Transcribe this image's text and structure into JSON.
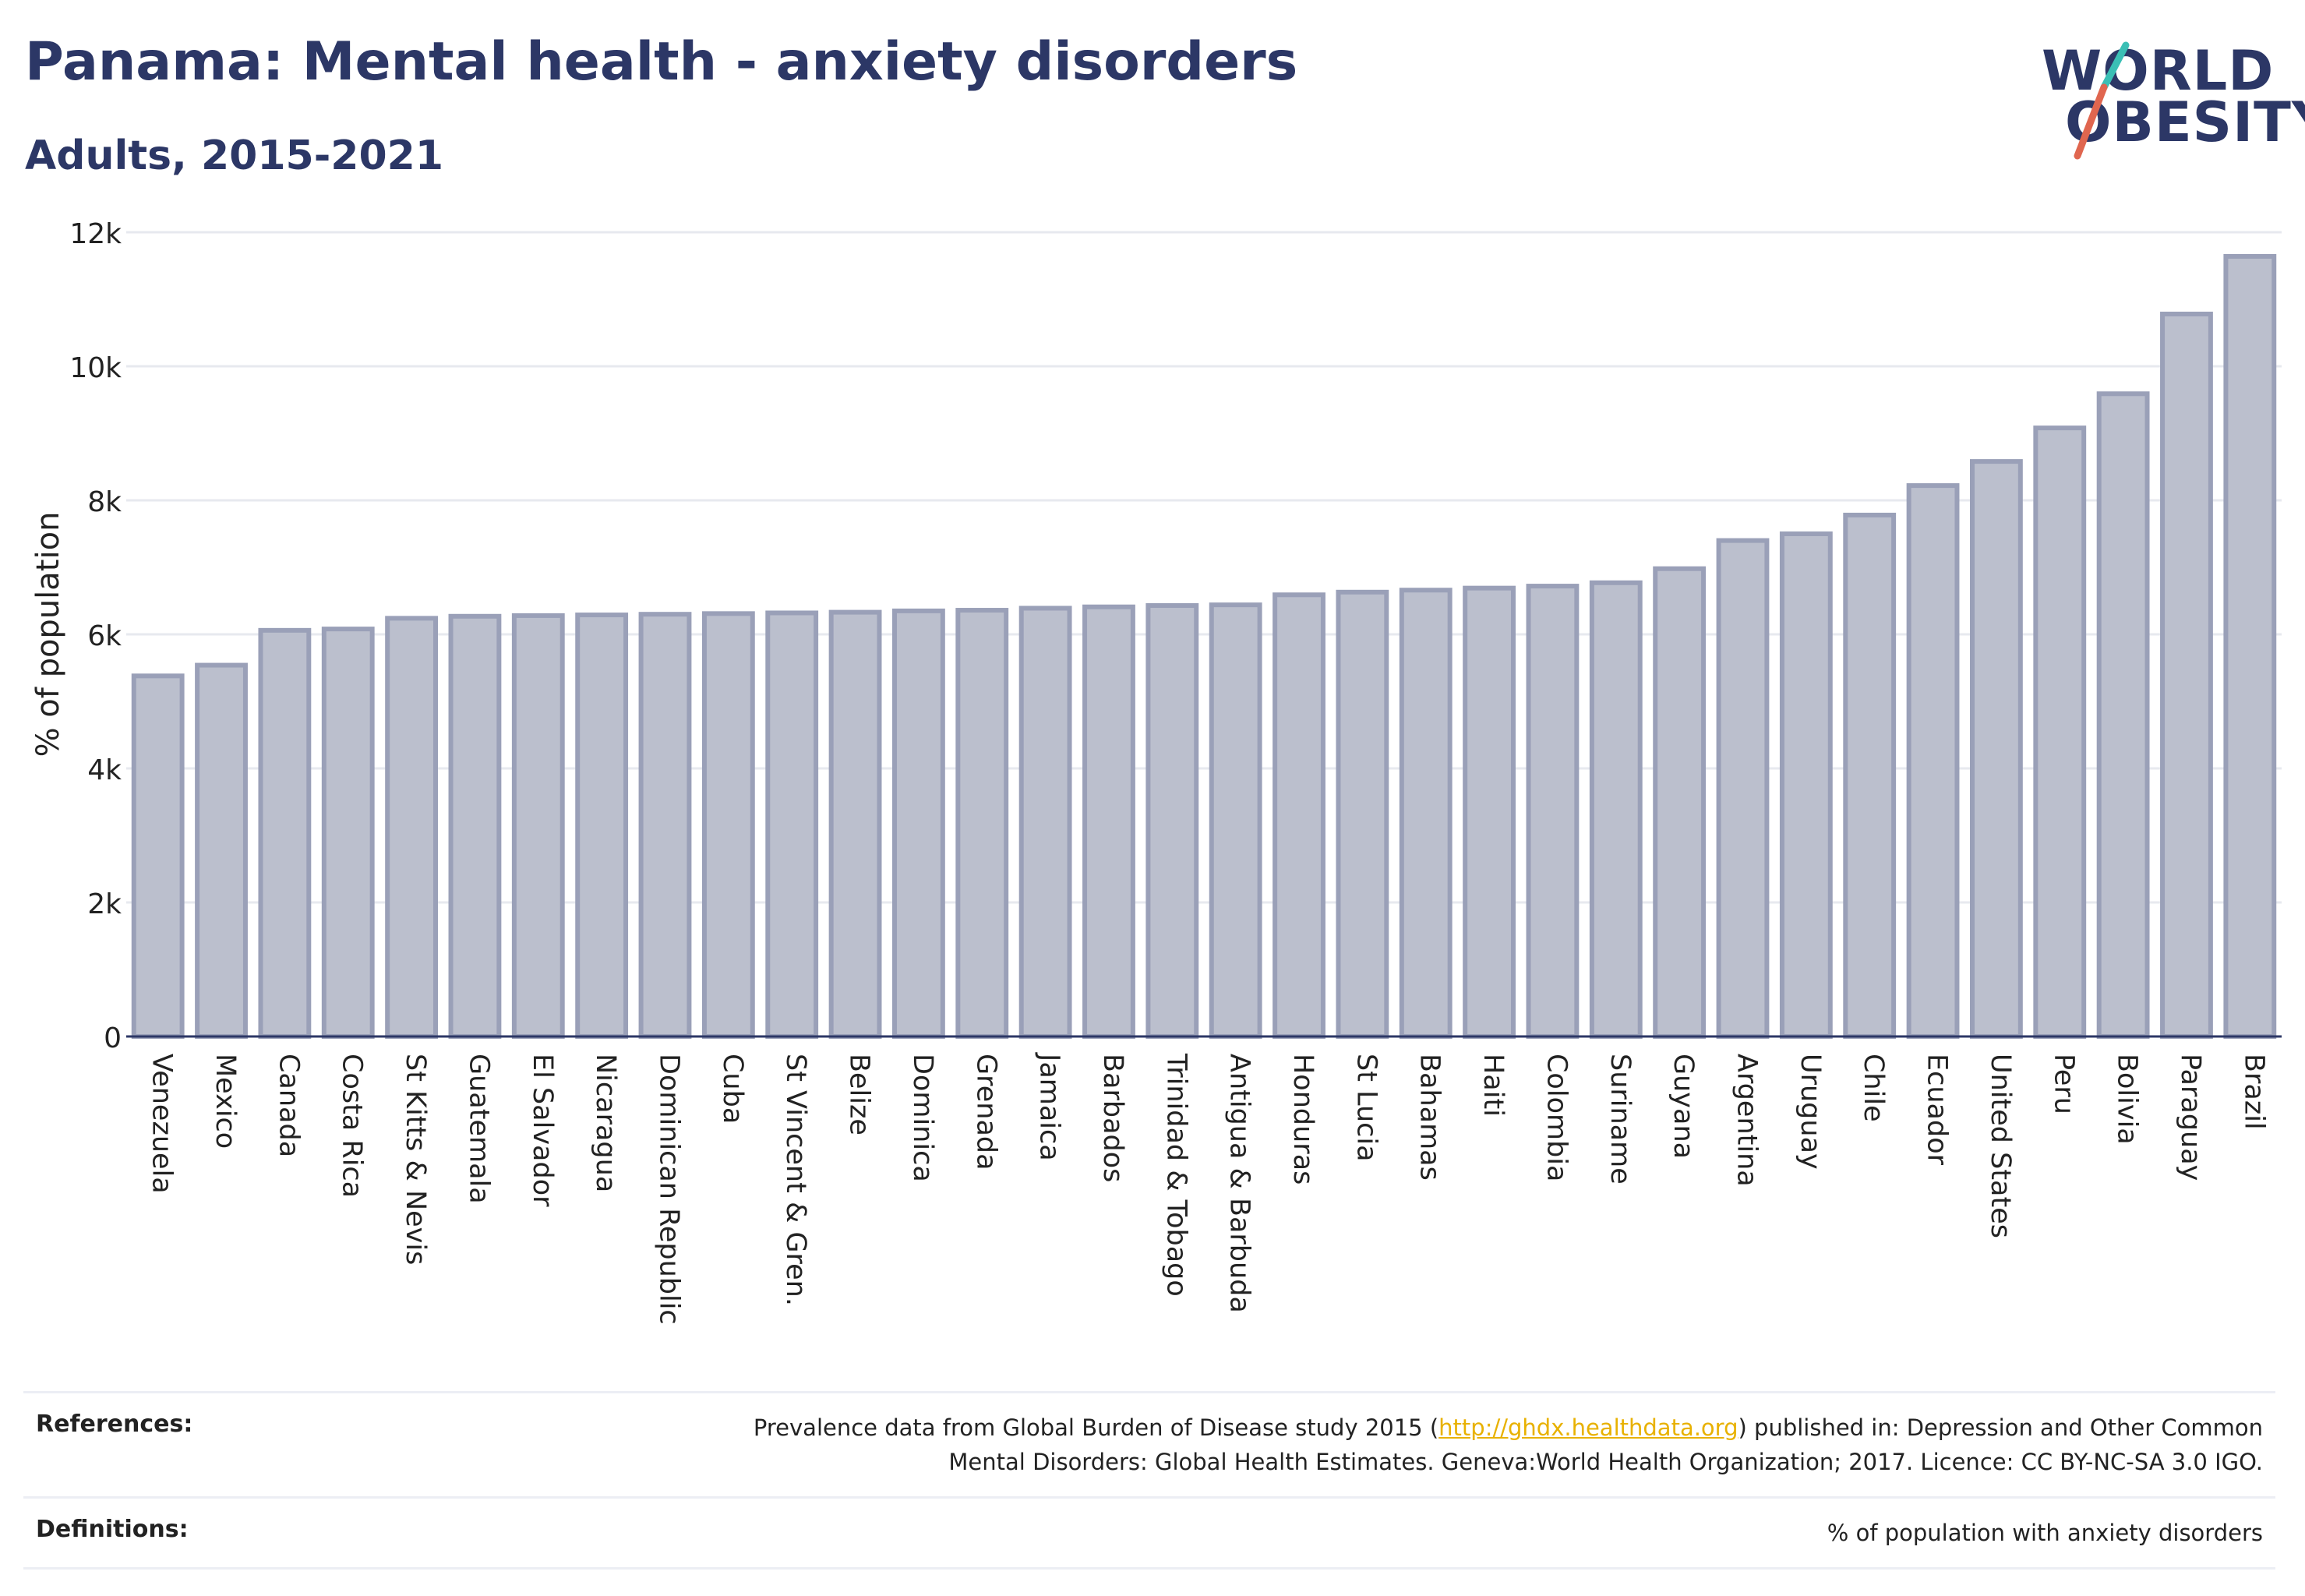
{
  "header": {
    "title": "Panama: Mental health - anxiety disorders",
    "subtitle": "Adults, 2015-2021"
  },
  "logo": {
    "line1": "WORLD",
    "line2": "OBESITY",
    "colors": {
      "text": "#2c3766",
      "slash_top": "#3bbfb5",
      "slash_bottom": "#e0664f"
    }
  },
  "chart_data": {
    "type": "bar",
    "title": "Panama: Mental health - anxiety disorders",
    "subtitle": "Adults, 2015-2021",
    "ylabel": "% of population",
    "xlabel": "",
    "ylim": [
      0,
      12000
    ],
    "yticks": [
      0,
      2000,
      4000,
      6000,
      8000,
      10000,
      12000
    ],
    "ytick_labels": [
      "0",
      "2k",
      "4k",
      "6k",
      "8k",
      "10k",
      "12k"
    ],
    "grid": true,
    "legend": "none",
    "bar_color": "#bbbfcd",
    "bar_edge_color": "#9aa0b8",
    "categories": [
      "Venezuela",
      "Mexico",
      "Canada",
      "Costa Rica",
      "St Kitts & Nevis",
      "Guatemala",
      "El Salvador",
      "Nicaragua",
      "Dominican Republic",
      "Cuba",
      "St Vincent & Gren.",
      "Belize",
      "Dominica",
      "Grenada",
      "Jamaica",
      "Barbados",
      "Trinidad & Tobago",
      "Antigua & Barbuda",
      "Honduras",
      "St Lucia",
      "Bahamas",
      "Haiti",
      "Colombia",
      "Suriname",
      "Guyana",
      "Argentina",
      "Uruguay",
      "Chile",
      "Ecuador",
      "United States",
      "Peru",
      "Bolivia",
      "Paraguay",
      "Brazil"
    ],
    "values": [
      5380,
      5540,
      6060,
      6080,
      6240,
      6270,
      6280,
      6290,
      6300,
      6310,
      6320,
      6330,
      6350,
      6360,
      6390,
      6410,
      6430,
      6440,
      6590,
      6630,
      6660,
      6690,
      6720,
      6770,
      6980,
      7400,
      7500,
      7780,
      8220,
      8580,
      9080,
      9590,
      10780,
      11640
    ]
  },
  "references": {
    "label": "References:",
    "text_before": "Prevalence data from Global Burden of Disease study 2015 (",
    "link": "http://ghdx.healthdata.org",
    "text_after": ") published in: Depression and Other Common",
    "line2": "Mental Disorders: Global Health Estimates. Geneva:World Health Organization; 2017. Licence: CC BY-NC-SA 3.0 IGO."
  },
  "definitions": {
    "label": "Definitions:",
    "text": "% of population with anxiety disorders"
  }
}
